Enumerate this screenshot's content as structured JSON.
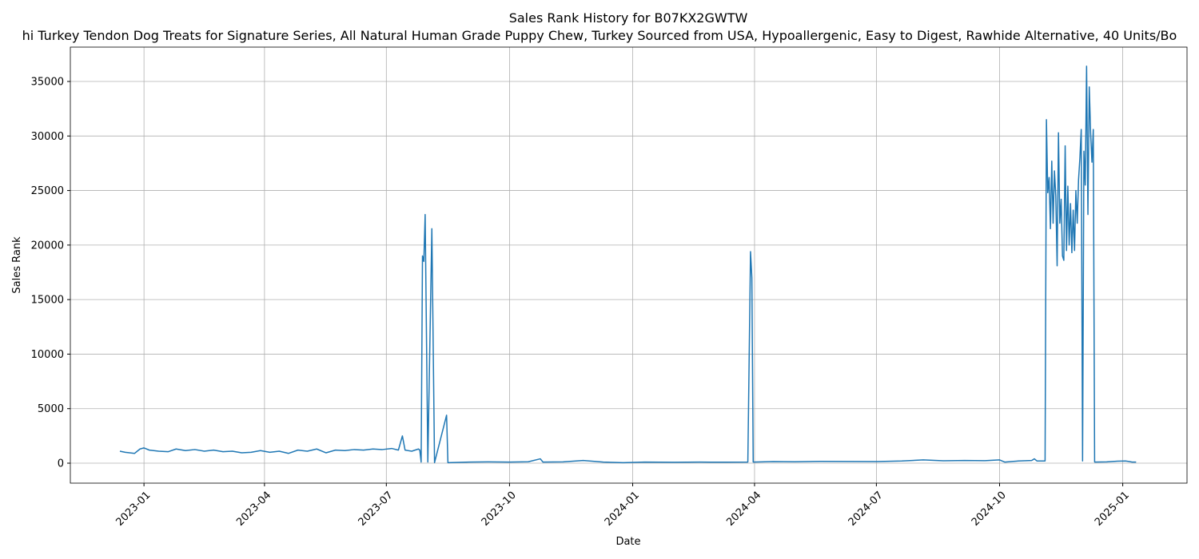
{
  "chart_data": {
    "type": "line",
    "title": "Sales Rank History for B07KX2GWTW",
    "subtitle": "hi Turkey Tendon Dog Treats for Signature Series, All Natural Human Grade Puppy Chew, Turkey Sourced from USA, Hypoallergenic, Easy to Digest, Rawhide Alternative, 40 Units/Bo",
    "xlabel": "Date",
    "ylabel": "Sales Rank",
    "color": "#1f77b4",
    "grid": true,
    "xlim": [
      "2022-11-07",
      "2025-02-18"
    ],
    "xticks": [
      {
        "value": "2023-01-01",
        "label": "2023-01"
      },
      {
        "value": "2023-04-01",
        "label": "2023-04"
      },
      {
        "value": "2023-07-01",
        "label": "2023-07"
      },
      {
        "value": "2023-10-01",
        "label": "2023-10"
      },
      {
        "value": "2024-01-01",
        "label": "2024-01"
      },
      {
        "value": "2024-04-01",
        "label": "2024-04"
      },
      {
        "value": "2024-07-01",
        "label": "2024-07"
      },
      {
        "value": "2024-10-01",
        "label": "2024-10"
      },
      {
        "value": "2025-01-01",
        "label": "2025-01"
      }
    ],
    "ylim": [
      -1830,
      38150
    ],
    "yticks": [
      0,
      5000,
      10000,
      15000,
      20000,
      25000,
      30000,
      35000
    ],
    "x": [
      "2022-12-14",
      "2022-12-18",
      "2022-12-25",
      "2022-12-29",
      "2023-01-01",
      "2023-01-05",
      "2023-01-12",
      "2023-01-19",
      "2023-01-25",
      "2023-02-01",
      "2023-02-08",
      "2023-02-15",
      "2023-02-22",
      "2023-03-01",
      "2023-03-08",
      "2023-03-15",
      "2023-03-22",
      "2023-03-29",
      "2023-04-05",
      "2023-04-12",
      "2023-04-19",
      "2023-04-26",
      "2023-05-03",
      "2023-05-10",
      "2023-05-17",
      "2023-05-24",
      "2023-05-31",
      "2023-06-07",
      "2023-06-14",
      "2023-06-21",
      "2023-06-28",
      "2023-07-05",
      "2023-07-10",
      "2023-07-13",
      "2023-07-15",
      "2023-07-20",
      "2023-07-25",
      "2023-07-26",
      "2023-07-27",
      "2023-07-28",
      "2023-07-29",
      "2023-07-30",
      "2023-08-01",
      "2023-08-04",
      "2023-08-06",
      "2023-08-15",
      "2023-08-16",
      "2023-09-01",
      "2023-09-15",
      "2023-10-01",
      "2023-10-15",
      "2023-10-24",
      "2023-10-26",
      "2023-11-10",
      "2023-11-25",
      "2023-12-10",
      "2023-12-25",
      "2024-01-10",
      "2024-02-01",
      "2024-02-20",
      "2024-03-10",
      "2024-03-27",
      "2024-03-29",
      "2024-03-30",
      "2024-03-31",
      "2024-04-15",
      "2024-05-01",
      "2024-05-20",
      "2024-06-10",
      "2024-07-01",
      "2024-07-20",
      "2024-08-05",
      "2024-08-20",
      "2024-09-05",
      "2024-09-20",
      "2024-10-01",
      "2024-10-05",
      "2024-10-15",
      "2024-10-25",
      "2024-10-27",
      "2024-10-29",
      "2024-11-04",
      "2024-11-05",
      "2024-11-06",
      "2024-11-07",
      "2024-11-08",
      "2024-11-09",
      "2024-11-10",
      "2024-11-11",
      "2024-11-12",
      "2024-11-13",
      "2024-11-14",
      "2024-11-15",
      "2024-11-16",
      "2024-11-17",
      "2024-11-18",
      "2024-11-19",
      "2024-11-20",
      "2024-11-21",
      "2024-11-22",
      "2024-11-23",
      "2024-11-24",
      "2024-11-25",
      "2024-11-26",
      "2024-11-27",
      "2024-11-28",
      "2024-11-29",
      "2024-11-30",
      "2024-12-01",
      "2024-12-02",
      "2024-12-03",
      "2024-12-04",
      "2024-12-05",
      "2024-12-06",
      "2024-12-07",
      "2024-12-08",
      "2024-12-09",
      "2024-12-10",
      "2024-12-11",
      "2024-12-20",
      "2024-12-28",
      "2025-01-03",
      "2025-01-06",
      "2025-01-08",
      "2025-01-11"
    ],
    "values": [
      1100,
      1000,
      900,
      1300,
      1400,
      1200,
      1100,
      1050,
      1300,
      1150,
      1250,
      1100,
      1200,
      1050,
      1100,
      950,
      1000,
      1150,
      1000,
      1100,
      900,
      1200,
      1100,
      1300,
      950,
      1200,
      1150,
      1250,
      1200,
      1300,
      1250,
      1350,
      1200,
      2500,
      1200,
      1100,
      1300,
      1200,
      100,
      19000,
      18500,
      22800,
      100,
      21500,
      50,
      4400,
      50,
      100,
      120,
      100,
      130,
      400,
      100,
      120,
      250,
      100,
      50,
      100,
      80,
      100,
      90,
      100,
      19400,
      17000,
      100,
      150,
      130,
      170,
      160,
      150,
      200,
      300,
      220,
      250,
      230,
      300,
      100,
      200,
      250,
      400,
      200,
      200,
      31500,
      24800,
      26200,
      21500,
      27700,
      22000,
      26800,
      24500,
      18100,
      30300,
      22000,
      24200,
      19000,
      18600,
      29100,
      19500,
      25400,
      20000,
      23800,
      19300,
      23200,
      19500,
      25000,
      22000,
      26000,
      28000,
      30600,
      200,
      28600,
      25500,
      36400,
      22800,
      34500,
      30300,
      27600,
      30600,
      100,
      120,
      180,
      200,
      150,
      100,
      100
    ]
  }
}
